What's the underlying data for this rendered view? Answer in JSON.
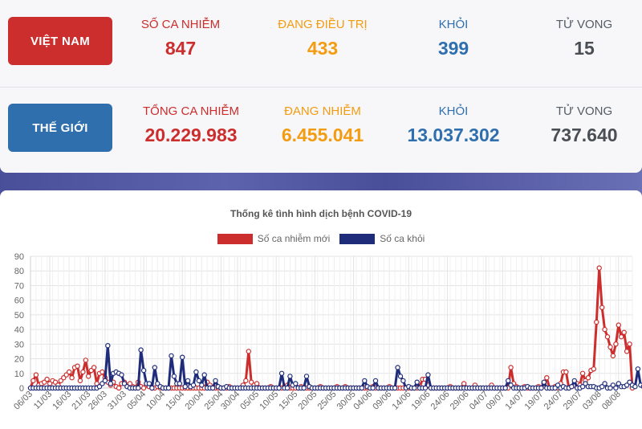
{
  "vietnam": {
    "label": "VIỆT NAM",
    "stats": [
      {
        "label": "SỐ CA NHIỄM",
        "value": "847"
      },
      {
        "label": "ĐANG ĐIỀU TRỊ",
        "value": "433"
      },
      {
        "label": "KHỎI",
        "value": "399"
      },
      {
        "label": "TỬ VONG",
        "value": "15"
      }
    ]
  },
  "world": {
    "label": "THẾ GIỚI",
    "stats": [
      {
        "label": "TỔNG CA NHIỄM",
        "value": "20.229.983"
      },
      {
        "label": "ĐANG NHIỄM",
        "value": "6.455.041"
      },
      {
        "label": "KHỎI",
        "value": "13.037.302"
      },
      {
        "label": "TỬ VONG",
        "value": "737.640"
      }
    ]
  },
  "colors": {
    "red": "#cc2d2d",
    "blue": "#2f6fad",
    "orange": "#f39c12",
    "navy": "#1f2c7a"
  },
  "chart_data": {
    "type": "line",
    "title": "Thống kê tình hình dịch bệnh COVID-19",
    "ylim": [
      0,
      90
    ],
    "yticks": [
      0,
      10,
      20,
      30,
      40,
      50,
      60,
      70,
      80,
      90
    ],
    "grid": true,
    "legend_position": "top",
    "xticks": [
      "06/03",
      "11/03",
      "16/03",
      "21/03",
      "26/03",
      "31/03",
      "05/04",
      "10/04",
      "15/04",
      "20/04",
      "25/04",
      "30/04",
      "05/05",
      "10/05",
      "15/05",
      "20/05",
      "25/05",
      "30/05",
      "04/06",
      "09/06",
      "14/06",
      "19/06",
      "24/06",
      "29/06",
      "04/07",
      "09/07",
      "14/07",
      "19/07",
      "24/07",
      "29/07",
      "03/08",
      "08/08"
    ],
    "series": [
      {
        "name": "Số ca nhiễm mới",
        "color": "#cc2d2d",
        "values": [
          0,
          5,
          9,
          2,
          3,
          4,
          6,
          3,
          5,
          4,
          2,
          5,
          7,
          9,
          11,
          7,
          14,
          15,
          5,
          11,
          19,
          8,
          12,
          14,
          3,
          10,
          11,
          7,
          4,
          2,
          4,
          1,
          0,
          3,
          4,
          2,
          3,
          1,
          0,
          4,
          1,
          0,
          2,
          1,
          0,
          0,
          1,
          0,
          0,
          0,
          0,
          0,
          0,
          0,
          0,
          0,
          0,
          0,
          0,
          0,
          0,
          0,
          0,
          0,
          4,
          2,
          0,
          0,
          0,
          0,
          0,
          0,
          1,
          0,
          0,
          0,
          0,
          2,
          5,
          25,
          4,
          2,
          3,
          0,
          0,
          0,
          0,
          1,
          0,
          0,
          0,
          0,
          1,
          2,
          0,
          0,
          0,
          0,
          1,
          0,
          0,
          0,
          0,
          0,
          0,
          1,
          0,
          0,
          0,
          0,
          0,
          1,
          0,
          0,
          1,
          0,
          0,
          0,
          0,
          0,
          0,
          0,
          0,
          0,
          1,
          0,
          0,
          0,
          0,
          0,
          1,
          0,
          0,
          0,
          0,
          0,
          0,
          0,
          0,
          0,
          0,
          1,
          6,
          6,
          2,
          0,
          0,
          0,
          0,
          0,
          0,
          0,
          1,
          0,
          0,
          0,
          0,
          3,
          0,
          0,
          0,
          2,
          0,
          0,
          0,
          0,
          0,
          2,
          0,
          0,
          0,
          0,
          0,
          0,
          14,
          3,
          1,
          0,
          0,
          1,
          0,
          0,
          0,
          0,
          1,
          0,
          3,
          7,
          0,
          0,
          1,
          0,
          3,
          11,
          11,
          0,
          1,
          2,
          3,
          2,
          10,
          5,
          7,
          12,
          13,
          45,
          82,
          55,
          40,
          35,
          28,
          22,
          30,
          43,
          35,
          38,
          25,
          30,
          0
        ]
      },
      {
        "name": "Số ca khỏi",
        "color": "#1f2c7a",
        "values": [
          0,
          0,
          0,
          0,
          0,
          0,
          0,
          0,
          0,
          0,
          0,
          0,
          0,
          0,
          0,
          0,
          0,
          0,
          0,
          0,
          0,
          0,
          0,
          0,
          0,
          1,
          3,
          5,
          29,
          3,
          10,
          11,
          10,
          9,
          3,
          1,
          0,
          0,
          0,
          0,
          26,
          12,
          3,
          3,
          0,
          14,
          3,
          1,
          0,
          0,
          0,
          22,
          8,
          3,
          3,
          21,
          1,
          5,
          1,
          2,
          11,
          5,
          2,
          9,
          0,
          0,
          0,
          5,
          1,
          0,
          0,
          1,
          0,
          0,
          0,
          0,
          0,
          0,
          0,
          0,
          0,
          0,
          0,
          0,
          0,
          0,
          0,
          0,
          0,
          0,
          0,
          10,
          0,
          0,
          8,
          2,
          3,
          0,
          0,
          0,
          8,
          1,
          0,
          0,
          0,
          0,
          0,
          0,
          0,
          0,
          0,
          0,
          0,
          0,
          0,
          0,
          0,
          0,
          0,
          0,
          0,
          5,
          1,
          0,
          0,
          5,
          0,
          0,
          0,
          0,
          0,
          0,
          0,
          14,
          8,
          5,
          0,
          1,
          0,
          0,
          4,
          0,
          0,
          0,
          9,
          0,
          0,
          0,
          0,
          0,
          0,
          0,
          0,
          0,
          0,
          0,
          0,
          0,
          0,
          0,
          0,
          0,
          0,
          0,
          0,
          0,
          0,
          0,
          0,
          0,
          0,
          0,
          0,
          5,
          2,
          0,
          0,
          0,
          0,
          0,
          1,
          0,
          0,
          0,
          0,
          0,
          4,
          0,
          0,
          0,
          0,
          2,
          0,
          1,
          0,
          0,
          1,
          5,
          0,
          0,
          1,
          3,
          1,
          1,
          1,
          0,
          0,
          1,
          3,
          0,
          0,
          2,
          0,
          3,
          1,
          1,
          2,
          4,
          2,
          1,
          13,
          2,
          1,
          1,
          6,
          6,
          0,
          3
        ]
      }
    ]
  }
}
